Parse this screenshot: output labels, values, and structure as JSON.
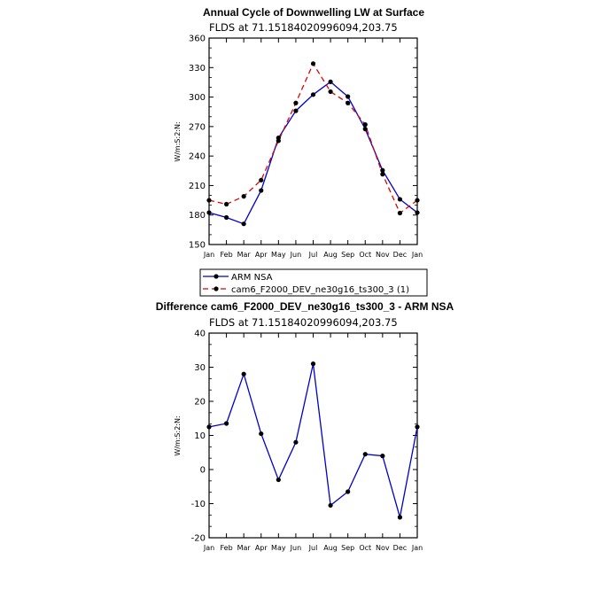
{
  "chart_data": [
    {
      "type": "line",
      "title": "Annual Cycle of Downwelling LW at Surface",
      "subtitle": "FLDS at 71.15184020996094,203.75",
      "ylabel": "W/m:S:2:N:",
      "categories": [
        "Jan",
        "Feb",
        "Mar",
        "Apr",
        "May",
        "Jun",
        "Jul",
        "Aug",
        "Sep",
        "Oct",
        "Nov",
        "Dec",
        "Jan"
      ],
      "ylim": [
        150,
        360
      ],
      "yticks": [
        150,
        180,
        210,
        240,
        270,
        300,
        330,
        360
      ],
      "legend": "bottom",
      "series": [
        {
          "name": "ARM NSA",
          "color": "#0000cc",
          "dash": "none",
          "values": [
            182.5,
            177.5,
            171.0,
            205.0,
            258.5,
            286.0,
            302.5,
            315.5,
            300.5,
            267.5,
            225.5,
            196.0,
            182.5
          ]
        },
        {
          "name": "cam6_F2000_DEV_ne30g16_ts300_3 (1)",
          "color": "#e00000",
          "dash": "6,4",
          "values": [
            195.0,
            191.0,
            199.0,
            215.5,
            255.5,
            294.0,
            334.0,
            305.5,
            294.0,
            272.0,
            221.5,
            182.0,
            195.0
          ]
        }
      ]
    },
    {
      "type": "line",
      "title": "Difference cam6_F2000_DEV_ne30g16_ts300_3 - ARM NSA",
      "subtitle": "FLDS at 71.15184020996094,203.75",
      "ylabel": "W/m:S:2:N:",
      "categories": [
        "Jan",
        "Feb",
        "Mar",
        "Apr",
        "May",
        "Jun",
        "Jul",
        "Aug",
        "Sep",
        "Oct",
        "Nov",
        "Dec",
        "Jan"
      ],
      "ylim": [
        -20,
        40
      ],
      "yticks": [
        -20,
        -10,
        0,
        10,
        20,
        30,
        40
      ],
      "series": [
        {
          "name": "",
          "color": "#0000cc",
          "dash": "none",
          "values": [
            12.5,
            13.5,
            28.0,
            10.5,
            -3.0,
            8.0,
            31.0,
            -10.5,
            -6.5,
            4.5,
            4.0,
            -14.0,
            12.5
          ]
        }
      ]
    }
  ]
}
